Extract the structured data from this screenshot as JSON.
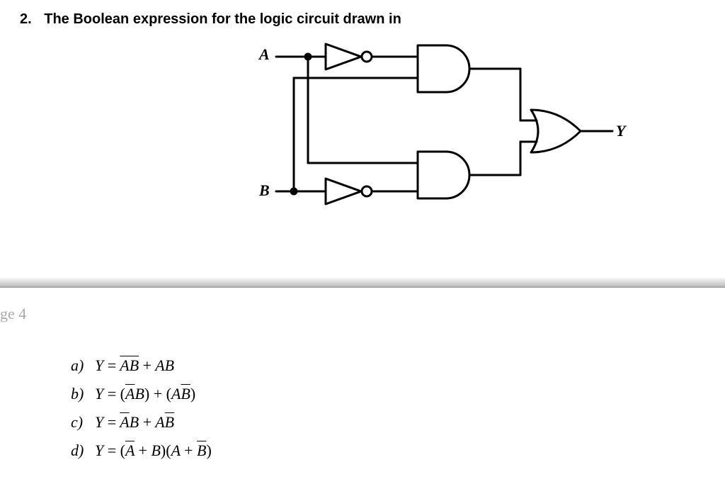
{
  "question": {
    "number": "2.",
    "stem": "The Boolean expression for the logic circuit drawn in"
  },
  "circuit": {
    "inputs": {
      "A": "A",
      "B": "B"
    },
    "output": "Y",
    "stroke": "#000000",
    "stroke_width": 3,
    "dot_radius": 4,
    "bubble_radius": 7,
    "label_fontsize": 22,
    "gates": {
      "not_top": {
        "type": "NOT",
        "in": "A"
      },
      "not_bot": {
        "type": "NOT",
        "in": "B"
      },
      "and_top": {
        "type": "AND",
        "ins": [
          "not(A)",
          "B"
        ]
      },
      "and_bot": {
        "type": "AND",
        "ins": [
          "A",
          "not(B)"
        ]
      },
      "or_out": {
        "type": "OR",
        "ins": [
          "and_top",
          "and_bot"
        ],
        "out": "Y"
      }
    }
  },
  "page_note": "ge 4",
  "options": {
    "a": {
      "letter": "a)",
      "html": "<span class='math'>Y <span class='rm'>=</span> <span class='overline'>AB</span> <span class='rm'>+</span> AB</span>"
    },
    "b": {
      "letter": "b)",
      "html": "<span class='math'>Y <span class='rm'>=</span> <span class='rm'>(</span><span class='overline'>A</span>B<span class='rm'>)</span> <span class='rm'>+</span> <span class='rm'>(</span>A<span class='overline'>B</span><span class='rm'>)</span></span>"
    },
    "c": {
      "letter": "c)",
      "html": "<span class='math'>Y <span class='rm'>=</span> <span class='overline'>A</span>B <span class='rm'>+</span> A<span class='overline'>B</span></span>"
    },
    "d": {
      "letter": "d)",
      "html": "<span class='math'>Y <span class='rm'>=</span> <span class='rm'>(</span><span class='overline'>A</span> <span class='rm'>+</span> B<span class='rm'>)(</span>A <span class='rm'>+</span> <span class='overline'>B</span><span class='rm'>)</span></span>"
    }
  },
  "colors": {
    "text": "#000000",
    "page_note": "#a9a9a9",
    "divider_top": "#f6f6f6",
    "divider_bottom": "#a9a9a9",
    "background": "#ffffff"
  }
}
